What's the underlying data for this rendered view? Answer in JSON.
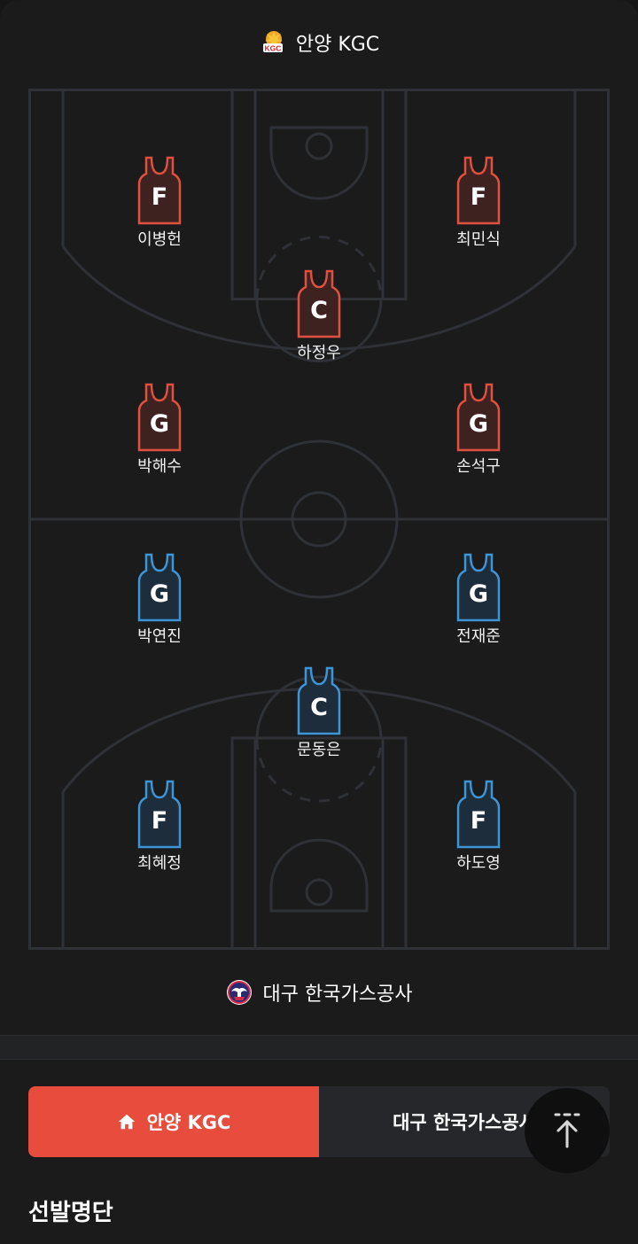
{
  "home_team": {
    "name": "안양 KGC",
    "logo_text": "KGC",
    "jersey_fill": "#3d2220",
    "jersey_stroke": "#e0503f",
    "players": [
      {
        "position": "F",
        "name": "이병헌"
      },
      {
        "position": "F",
        "name": "최민식"
      },
      {
        "position": "C",
        "name": "하정우"
      },
      {
        "position": "G",
        "name": "박해수"
      },
      {
        "position": "G",
        "name": "손석구"
      }
    ]
  },
  "away_team": {
    "name": "대구 한국가스공사",
    "jersey_fill": "#1e2d3c",
    "jersey_stroke": "#3d95d6",
    "players": [
      {
        "position": "G",
        "name": "박연진"
      },
      {
        "position": "G",
        "name": "전재준"
      },
      {
        "position": "C",
        "name": "문동은"
      },
      {
        "position": "F",
        "name": "최혜정"
      },
      {
        "position": "F",
        "name": "하도영"
      }
    ]
  },
  "tabs": {
    "home_label": "안양 KGC",
    "away_label": "대구 한국가스공사"
  },
  "section_title": "선발명단",
  "colors": {
    "court_line": "#2e3136",
    "accent": "#e84c3d"
  },
  "icons": {
    "home_tab": "home-icon",
    "scroll_top": "arrow-up-icon"
  }
}
